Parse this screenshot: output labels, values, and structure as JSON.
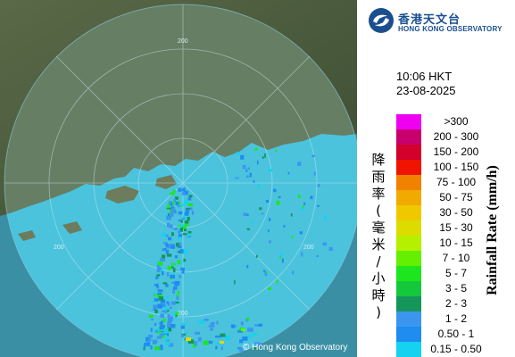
{
  "logo": {
    "name_cn": "香港天文台",
    "name_en": "HONG KONG OBSERVATORY",
    "icon": "hko-logo-icon",
    "color": "#1a4f8f"
  },
  "timestamp": {
    "time": "10:06 HKT",
    "date": "23-08-2025"
  },
  "legend": {
    "title_cn": "降雨率(毫米/小時)",
    "title_en": "Rainfall Rate (mm/h)",
    "items": [
      {
        "label": ">300",
        "color": "#f000f0"
      },
      {
        "label": "200 - 300",
        "color": "#c8006e"
      },
      {
        "label": "150 - 200",
        "color": "#d2002a"
      },
      {
        "label": "100 - 150",
        "color": "#f01400"
      },
      {
        "label": "75 - 100",
        "color": "#f08200"
      },
      {
        "label": "50 - 75",
        "color": "#f0aa00"
      },
      {
        "label": "30 - 50",
        "color": "#f0c800"
      },
      {
        "label": "15 - 30",
        "color": "#dcdc00"
      },
      {
        "label": "10 - 15",
        "color": "#b4f000"
      },
      {
        "label": "7 - 10",
        "color": "#64f000"
      },
      {
        "label": "5 - 7",
        "color": "#1ee61e"
      },
      {
        "label": "3 - 5",
        "color": "#14c83c"
      },
      {
        "label": "2 - 3",
        "color": "#14965a"
      },
      {
        "label": "1 - 2",
        "color": "#3c96f0"
      },
      {
        "label": "0.50 - 1",
        "color": "#1e8cf0"
      },
      {
        "label": "0.15 - 0.50",
        "color": "#14d2f0"
      }
    ]
  },
  "map": {
    "range_labels": [
      "200",
      "200",
      "200",
      "200"
    ],
    "credit": "© Hong Kong Observatory",
    "sea_color": "#3a8fa4",
    "radar_coverage_color": "#4bc3dd",
    "land_color": "#4a5a3e"
  }
}
